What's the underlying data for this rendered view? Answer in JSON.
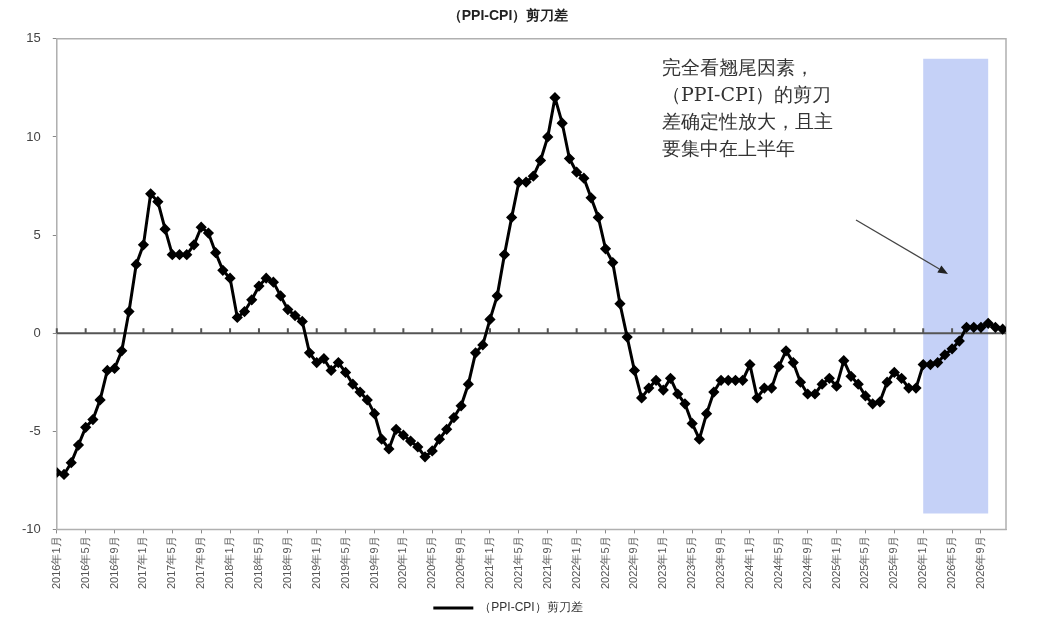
{
  "chart_data": {
    "type": "line",
    "title": "（PPI-CPI）剪刀差",
    "x": [
      "2016-01",
      "2016-02",
      "2016-03",
      "2016-04",
      "2016-05",
      "2016-06",
      "2016-07",
      "2016-08",
      "2016-09",
      "2016-10",
      "2016-11",
      "2016-12",
      "2017-01",
      "2017-02",
      "2017-03",
      "2017-04",
      "2017-05",
      "2017-06",
      "2017-07",
      "2017-08",
      "2017-09",
      "2017-10",
      "2017-11",
      "2017-12",
      "2018-01",
      "2018-02",
      "2018-03",
      "2018-04",
      "2018-05",
      "2018-06",
      "2018-07",
      "2018-08",
      "2018-09",
      "2018-10",
      "2018-11",
      "2018-12",
      "2019-01",
      "2019-02",
      "2019-03",
      "2019-04",
      "2019-05",
      "2019-06",
      "2019-07",
      "2019-08",
      "2019-09",
      "2019-10",
      "2019-11",
      "2019-12",
      "2020-01",
      "2020-02",
      "2020-03",
      "2020-04",
      "2020-05",
      "2020-06",
      "2020-07",
      "2020-08",
      "2020-09",
      "2020-10",
      "2020-11",
      "2020-12",
      "2021-01",
      "2021-02",
      "2021-03",
      "2021-04",
      "2021-05",
      "2021-06",
      "2021-07",
      "2021-08",
      "2021-09",
      "2021-10",
      "2021-11",
      "2021-12",
      "2022-01",
      "2022-02",
      "2022-03",
      "2022-04",
      "2022-05",
      "2022-06",
      "2022-07",
      "2022-08",
      "2022-09",
      "2022-10",
      "2022-11",
      "2022-12",
      "2023-01",
      "2023-02",
      "2023-03",
      "2023-04",
      "2023-05",
      "2023-06",
      "2023-07",
      "2023-08",
      "2023-09",
      "2023-10",
      "2023-11",
      "2023-12",
      "2024-01",
      "2024-02",
      "2024-03",
      "2024-04",
      "2024-05",
      "2024-06",
      "2024-07",
      "2024-08",
      "2024-09",
      "2024-10",
      "2024-11",
      "2024-12",
      "2025-01",
      "2025-02",
      "2025-03",
      "2025-04",
      "2025-05",
      "2025-06",
      "2025-07",
      "2025-08",
      "2025-09",
      "2025-10",
      "2025-11",
      "2025-12",
      "2026-01",
      "2026-02",
      "2026-03",
      "2026-04",
      "2026-05",
      "2026-06",
      "2026-07",
      "2026-08",
      "2026-09",
      "2026-10",
      "2026-11",
      "2026-12"
    ],
    "series": [
      {
        "name": "（PPI-CPI）剪刀差",
        "color": "#000000",
        "values": [
          -7.1,
          -7.2,
          -6.6,
          -5.7,
          -4.8,
          -4.4,
          -3.4,
          -1.9,
          -1.8,
          -0.9,
          1.1,
          3.5,
          4.5,
          7.1,
          6.7,
          5.3,
          4.0,
          4.0,
          4.0,
          4.5,
          5.4,
          5.1,
          4.1,
          3.2,
          2.8,
          0.8,
          1.1,
          1.7,
          2.4,
          2.8,
          2.6,
          1.9,
          1.2,
          0.9,
          0.6,
          -1.0,
          -1.5,
          -1.3,
          -1.9,
          -1.5,
          -2.0,
          -2.6,
          -3.0,
          -3.4,
          -4.1,
          -5.4,
          -5.9,
          -4.9,
          -5.2,
          -5.5,
          -5.8,
          -6.3,
          -6.0,
          -5.4,
          -4.9,
          -4.3,
          -3.7,
          -2.6,
          -1.0,
          -0.6,
          0.7,
          1.9,
          4.0,
          5.9,
          7.7,
          7.7,
          8.0,
          8.8,
          10.0,
          12.0,
          10.7,
          8.9,
          8.2,
          7.9,
          6.9,
          5.9,
          4.3,
          3.6,
          1.5,
          -0.2,
          -1.9,
          -3.3,
          -2.8,
          -2.4,
          -2.9,
          -2.3,
          -3.1,
          -3.6,
          -4.6,
          -5.4,
          -4.1,
          -3.0,
          -2.4,
          -2.4,
          -2.4,
          -2.4,
          -1.6,
          -3.3,
          -2.8,
          -2.8,
          -1.7,
          -0.9,
          -1.5,
          -2.5,
          -3.1,
          -3.1,
          -2.6,
          -2.3,
          -2.7,
          -1.4,
          -2.2,
          -2.6,
          -3.2,
          -3.6,
          -3.5,
          -2.5,
          -2.0,
          -2.3,
          -2.8,
          -2.8,
          -1.6,
          -1.6,
          -1.5,
          -1.1,
          -0.8,
          -0.4,
          0.3,
          0.3,
          0.3,
          0.5,
          0.3,
          0.2
        ]
      }
    ],
    "xlim": [
      "2016-01",
      "2026-12-15"
    ],
    "xticks": [
      {
        "value": "2016-01",
        "label": "2016年1月"
      },
      {
        "value": "2016-05",
        "label": "2016年5月"
      },
      {
        "value": "2016-09",
        "label": "2016年9月"
      },
      {
        "value": "2017-01",
        "label": "2017年1月"
      },
      {
        "value": "2017-05",
        "label": "2017年5月"
      },
      {
        "value": "2017-09",
        "label": "2017年9月"
      },
      {
        "value": "2018-01",
        "label": "2018年1月"
      },
      {
        "value": "2018-05",
        "label": "2018年5月"
      },
      {
        "value": "2018-09",
        "label": "2018年9月"
      },
      {
        "value": "2019-01",
        "label": "2019年1月"
      },
      {
        "value": "2019-05",
        "label": "2019年5月"
      },
      {
        "value": "2019-09",
        "label": "2019年9月"
      },
      {
        "value": "2020-01",
        "label": "2020年1月"
      },
      {
        "value": "2020-05",
        "label": "2020年5月"
      },
      {
        "value": "2020-09",
        "label": "2020年9月"
      },
      {
        "value": "2021-01",
        "label": "2021年1月"
      },
      {
        "value": "2021-05",
        "label": "2021年5月"
      },
      {
        "value": "2021-09",
        "label": "2021年9月"
      },
      {
        "value": "2022-01",
        "label": "2022年1月"
      },
      {
        "value": "2022-05",
        "label": "2022年5月"
      },
      {
        "value": "2022-09",
        "label": "2022年9月"
      },
      {
        "value": "2023-01",
        "label": "2023年1月"
      },
      {
        "value": "2023-05",
        "label": "2023年5月"
      },
      {
        "value": "2023-09",
        "label": "2023年9月"
      },
      {
        "value": "2024-01",
        "label": "2024年1月"
      },
      {
        "value": "2024-05",
        "label": "2024年5月"
      },
      {
        "value": "2024-09",
        "label": "2024年9月"
      },
      {
        "value": "2025-01",
        "label": "2025年1月"
      },
      {
        "value": "2025-05",
        "label": "2025年5月"
      },
      {
        "value": "2025-09",
        "label": "2025年9月"
      },
      {
        "value": "2026-01",
        "label": "2026年1月"
      },
      {
        "value": "2026-05",
        "label": "2026年5月"
      },
      {
        "value": "2026-09",
        "label": "2026年9月"
      }
    ],
    "ylim": [
      -10,
      15
    ],
    "yticks": [
      -10,
      -5,
      0,
      5,
      10,
      15
    ],
    "ref_lines": [
      {
        "axis": "y",
        "value": 0,
        "color": "#555555"
      }
    ],
    "bands": [
      {
        "axis": "x",
        "from": "2026-01",
        "to": "2026-10",
        "color": "#c5d1f7"
      }
    ],
    "annotations": [
      "完全看翘尾因素，（PPI-CPI）的剪刀差确定性放大，且主要集中在上半年"
    ],
    "grid": false,
    "legend": "bottom",
    "marker": "diamond",
    "line_style": "solid"
  }
}
